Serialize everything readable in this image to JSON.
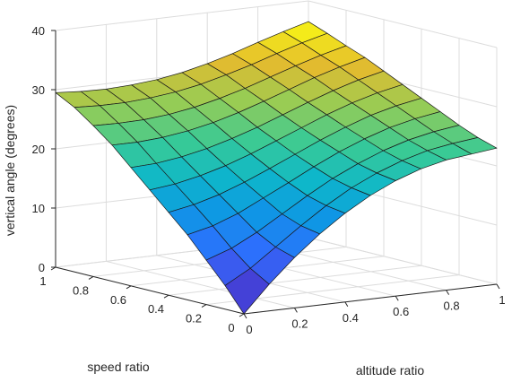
{
  "chart_data": {
    "type": "surface",
    "title": "",
    "xlabel": "altitude ratio",
    "ylabel": "speed ratio",
    "zlabel": "vertical angle (degrees)",
    "xlim": [
      0,
      1
    ],
    "ylim": [
      0,
      1
    ],
    "zlim": [
      0,
      40
    ],
    "x_ticks": [
      "0",
      "0.2",
      "0.4",
      "0.6",
      "0.8",
      "1"
    ],
    "y_ticks": [
      "0",
      "0.2",
      "0.4",
      "0.6",
      "0.8",
      "1"
    ],
    "z_ticks": [
      "0",
      "10",
      "20",
      "30",
      "40"
    ],
    "grid": true,
    "colormap": "parula",
    "x": [
      0,
      0.1,
      0.2,
      0.3,
      0.4,
      0.5,
      0.6,
      0.7,
      0.8,
      0.9,
      1.0
    ],
    "y": [
      0,
      0.1,
      0.2,
      0.3,
      0.4,
      0.5,
      0.6,
      0.7,
      0.8,
      0.9,
      1.0
    ],
    "z_formula_note": "",
    "z": [
      [
        0.0,
        4.5,
        8.5,
        12.0,
        15.0,
        17.5,
        19.5,
        21.0,
        22.0,
        22.5,
        23.0
      ],
      [
        4.0,
        6.4,
        9.5,
        12.6,
        15.5,
        18.0,
        20.0,
        21.6,
        22.8,
        23.5,
        24.0
      ],
      [
        7.5,
        9.0,
        11.2,
        13.8,
        16.4,
        18.8,
        20.8,
        22.5,
        23.8,
        24.7,
        25.3
      ],
      [
        11.0,
        12.0,
        13.6,
        15.7,
        17.8,
        20.0,
        22.0,
        23.7,
        25.1,
        26.1,
        26.8
      ],
      [
        14.0,
        14.8,
        16.0,
        17.6,
        19.4,
        21.3,
        23.2,
        24.9,
        26.4,
        27.5,
        28.3
      ],
      [
        17.0,
        17.5,
        18.4,
        19.6,
        21.1,
        22.8,
        24.5,
        26.2,
        27.7,
        28.9,
        29.8
      ],
      [
        20.0,
        20.2,
        20.8,
        21.7,
        22.9,
        24.3,
        25.9,
        27.5,
        29.0,
        30.3,
        31.3
      ],
      [
        23.0,
        23.0,
        23.3,
        23.9,
        24.8,
        26.0,
        27.4,
        28.9,
        30.4,
        31.7,
        32.8
      ],
      [
        25.5,
        25.4,
        25.5,
        25.9,
        26.6,
        27.6,
        28.8,
        30.2,
        31.6,
        32.9,
        34.0
      ],
      [
        27.8,
        27.6,
        27.6,
        27.9,
        28.4,
        29.2,
        30.3,
        31.5,
        32.9,
        34.2,
        35.3
      ],
      [
        29.5,
        29.2,
        29.1,
        29.3,
        29.7,
        30.4,
        31.4,
        32.6,
        34.0,
        35.3,
        36.5
      ]
    ]
  }
}
